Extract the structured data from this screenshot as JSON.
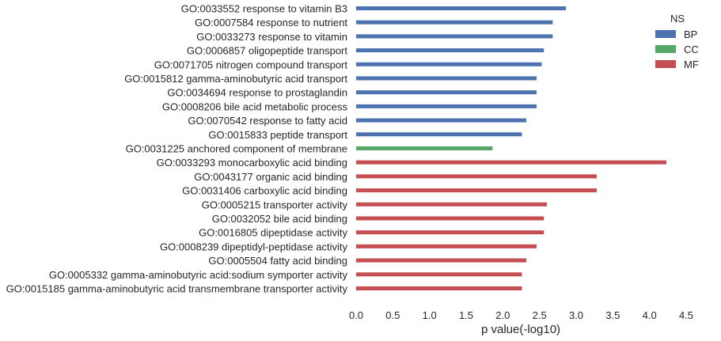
{
  "chart_data": {
    "type": "bar",
    "orientation": "horizontal",
    "xlabel": "p value(-log10)",
    "ylabel": "",
    "xlim": [
      0,
      4.5
    ],
    "xticks": [
      "0.0",
      "0.5",
      "1.0",
      "1.5",
      "2.0",
      "2.5",
      "3.0",
      "3.5",
      "4.0",
      "4.5"
    ],
    "grid": false,
    "legend": {
      "title": "NS",
      "placement": "top-right",
      "entries": [
        {
          "label": "BP",
          "color": "#4c72b0"
        },
        {
          "label": "CC",
          "color": "#55a868"
        },
        {
          "label": "MF",
          "color": "#c44e52"
        }
      ]
    },
    "bars": [
      {
        "label": "GO:0033552 response to vitamin B3",
        "value": 2.86,
        "group": "BP"
      },
      {
        "label": "GO:0007584 response to nutrient",
        "value": 2.68,
        "group": "BP"
      },
      {
        "label": "GO:0033273 response to vitamin",
        "value": 2.68,
        "group": "BP"
      },
      {
        "label": "GO:0006857 oligopeptide transport",
        "value": 2.56,
        "group": "BP"
      },
      {
        "label": "GO:0071705 nitrogen compound transport",
        "value": 2.53,
        "group": "BP"
      },
      {
        "label": "GO:0015812 gamma-aminobutyric acid transport",
        "value": 2.46,
        "group": "BP"
      },
      {
        "label": "GO:0034694 response to prostaglandin",
        "value": 2.46,
        "group": "BP"
      },
      {
        "label": "GO:0008206 bile acid metabolic process",
        "value": 2.46,
        "group": "BP"
      },
      {
        "label": "GO:0070542 response to fatty acid",
        "value": 2.32,
        "group": "BP"
      },
      {
        "label": "GO:0015833 peptide transport",
        "value": 2.26,
        "group": "BP"
      },
      {
        "label": "GO:0031225 anchored component of membrane",
        "value": 1.86,
        "group": "CC"
      },
      {
        "label": "GO:0033293 monocarboxylic acid binding",
        "value": 4.23,
        "group": "MF"
      },
      {
        "label": "GO:0043177 organic acid binding",
        "value": 3.28,
        "group": "MF"
      },
      {
        "label": "GO:0031406 carboxylic acid binding",
        "value": 3.28,
        "group": "MF"
      },
      {
        "label": "GO:0005215 transporter activity",
        "value": 2.6,
        "group": "MF"
      },
      {
        "label": "GO:0032052 bile acid binding",
        "value": 2.56,
        "group": "MF"
      },
      {
        "label": "GO:0016805 dipeptidase activity",
        "value": 2.56,
        "group": "MF"
      },
      {
        "label": "GO:0008239 dipeptidyl-peptidase activity",
        "value": 2.46,
        "group": "MF"
      },
      {
        "label": "GO:0005504 fatty acid binding",
        "value": 2.32,
        "group": "MF"
      },
      {
        "label": "GO:0005332 gamma-aminobutyric acid:sodium symporter activity",
        "value": 2.26,
        "group": "MF"
      },
      {
        "label": "GO:0015185 gamma-aminobutyric acid transmembrane transporter activity",
        "value": 2.26,
        "group": "MF"
      }
    ]
  }
}
